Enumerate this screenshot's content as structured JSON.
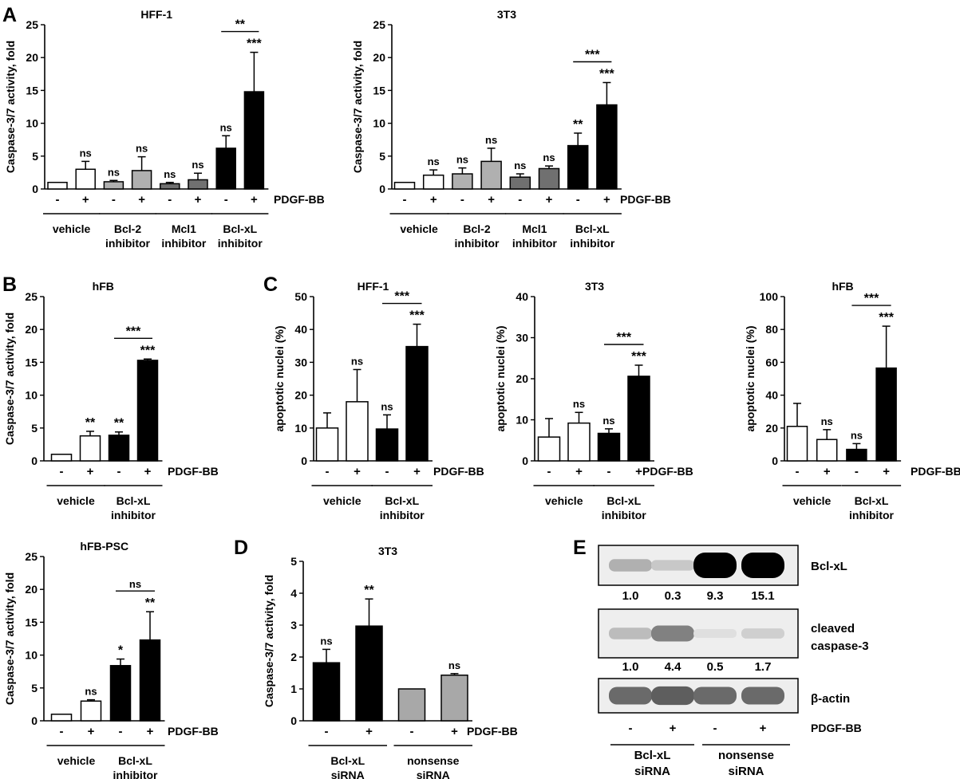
{
  "panel_letters": {
    "A": "A",
    "B": "B",
    "C": "C",
    "D": "D",
    "E": "E"
  },
  "chart_data": [
    {
      "id": "A1",
      "type": "bar",
      "title": "HFF-1",
      "ylabel": "Caspase-3/7 activity, fold",
      "ylim": [
        0,
        25
      ],
      "yticks": [
        "0",
        "5",
        "10",
        "15",
        "20",
        "25"
      ],
      "treatment_label": "PDGF-BB",
      "x_signs": [
        "-",
        "+",
        "-",
        "+",
        "-",
        "+",
        "-",
        "+"
      ],
      "groups": [
        {
          "label": [
            "vehicle"
          ],
          "bars": [
            0,
            1
          ]
        },
        {
          "label": [
            "Bcl-2",
            "inhibitor"
          ],
          "bars": [
            2,
            3
          ]
        },
        {
          "label": [
            "Mcl1",
            "inhibitor"
          ],
          "bars": [
            4,
            5
          ]
        },
        {
          "label": [
            "Bcl-xL",
            "inhibitor"
          ],
          "bars": [
            6,
            7
          ]
        }
      ],
      "values": [
        1.0,
        3.0,
        1.1,
        2.8,
        0.8,
        1.4,
        6.2,
        14.8
      ],
      "errors": [
        0,
        1.2,
        0.2,
        2.1,
        0.2,
        1.0,
        1.9,
        6.0
      ],
      "fills": [
        "#ffffff",
        "#ffffff",
        "#b0b0b0",
        "#b0b0b0",
        "#707070",
        "#707070",
        "#000000",
        "#000000"
      ],
      "bar_labels": [
        "",
        "ns",
        "ns",
        "ns",
        "ns",
        "ns",
        "ns",
        "***"
      ],
      "comparisons": [
        {
          "from": 6,
          "to": 7,
          "label": "**"
        }
      ]
    },
    {
      "id": "A2",
      "type": "bar",
      "title": "3T3",
      "ylabel": "Caspase-3/7 activity, fold",
      "ylim": [
        0,
        25
      ],
      "yticks": [
        "0",
        "5",
        "10",
        "15",
        "20",
        "25"
      ],
      "treatment_label": "PDGF-BB",
      "x_signs": [
        "-",
        "+",
        "-",
        "+",
        "-",
        "+",
        "-",
        "+"
      ],
      "groups": [
        {
          "label": [
            "vehicle"
          ],
          "bars": [
            0,
            1
          ]
        },
        {
          "label": [
            "Bcl-2",
            "inhibitor"
          ],
          "bars": [
            2,
            3
          ]
        },
        {
          "label": [
            "Mcl1",
            "inhibitor"
          ],
          "bars": [
            4,
            5
          ]
        },
        {
          "label": [
            "Bcl-xL",
            "inhibitor"
          ],
          "bars": [
            6,
            7
          ]
        }
      ],
      "values": [
        1.0,
        2.1,
        2.3,
        4.2,
        1.8,
        3.1,
        6.6,
        12.8
      ],
      "errors": [
        0,
        0.8,
        0.9,
        2.0,
        0.5,
        0.4,
        1.9,
        3.4
      ],
      "fills": [
        "#ffffff",
        "#ffffff",
        "#b0b0b0",
        "#b0b0b0",
        "#707070",
        "#707070",
        "#000000",
        "#000000"
      ],
      "bar_labels": [
        "",
        "ns",
        "ns",
        "ns",
        "ns",
        "ns",
        "**",
        "***"
      ],
      "comparisons": [
        {
          "from": 6,
          "to": 7,
          "label": "***"
        }
      ]
    },
    {
      "id": "B1",
      "type": "bar",
      "title": "hFB",
      "ylabel": "Caspase-3/7 activity, fold",
      "ylim": [
        0,
        25
      ],
      "yticks": [
        "0",
        "5",
        "10",
        "15",
        "20",
        "25"
      ],
      "treatment_label": "PDGF-BB",
      "x_signs": [
        "-",
        "+",
        "-",
        "+"
      ],
      "groups": [
        {
          "label": [
            "vehicle"
          ],
          "bars": [
            0,
            1
          ]
        },
        {
          "label": [
            "Bcl-xL",
            "inhibitor"
          ],
          "bars": [
            2,
            3
          ]
        }
      ],
      "values": [
        1.0,
        3.8,
        3.9,
        15.3
      ],
      "errors": [
        0,
        0.7,
        0.5,
        0.2
      ],
      "fills": [
        "#ffffff",
        "#ffffff",
        "#000000",
        "#000000"
      ],
      "bar_labels": [
        "",
        "**",
        "**",
        "***"
      ],
      "comparisons": [
        {
          "from": 2,
          "to": 3,
          "label": "***"
        }
      ]
    },
    {
      "id": "B2",
      "type": "bar",
      "title": "hFB-PSC",
      "ylabel": "Caspase-3/7 activity, fold",
      "ylim": [
        0,
        25
      ],
      "yticks": [
        "0",
        "5",
        "10",
        "15",
        "20",
        "25"
      ],
      "treatment_label": "PDGF-BB",
      "x_signs": [
        "-",
        "+",
        "-",
        "+"
      ],
      "groups": [
        {
          "label": [
            "vehicle"
          ],
          "bars": [
            0,
            1
          ]
        },
        {
          "label": [
            "Bcl-xL",
            "inhibitor"
          ],
          "bars": [
            2,
            3
          ]
        }
      ],
      "values": [
        1.0,
        3.0,
        8.4,
        12.3
      ],
      "errors": [
        0,
        0.2,
        1.0,
        4.3
      ],
      "fills": [
        "#ffffff",
        "#ffffff",
        "#000000",
        "#000000"
      ],
      "bar_labels": [
        "",
        "ns",
        "*",
        "**"
      ],
      "comparisons": [
        {
          "from": 2,
          "to": 3,
          "label": "ns"
        }
      ]
    },
    {
      "id": "C1",
      "type": "bar",
      "title": "HFF-1",
      "ylabel": "apoptotic nuclei (%)",
      "ylim": [
        0,
        50
      ],
      "yticks": [
        "0",
        "10",
        "20",
        "30",
        "40",
        "50"
      ],
      "treatment_label": "PDGF-BB",
      "x_signs": [
        "-",
        "+",
        "-",
        "+"
      ],
      "groups": [
        {
          "label": [
            "vehicle"
          ],
          "bars": [
            0,
            1
          ]
        },
        {
          "label": [
            "Bcl-xL",
            "inhibitor"
          ],
          "bars": [
            2,
            3
          ]
        }
      ],
      "values": [
        10.0,
        18.0,
        9.7,
        34.8
      ],
      "errors": [
        4.6,
        9.8,
        4.3,
        6.8
      ],
      "fills": [
        "#ffffff",
        "#ffffff",
        "#000000",
        "#000000"
      ],
      "bar_labels": [
        "",
        "ns",
        "ns",
        "***"
      ],
      "comparisons": [
        {
          "from": 2,
          "to": 3,
          "label": "***"
        }
      ]
    },
    {
      "id": "C2",
      "type": "bar",
      "title": "3T3",
      "ylabel": "apoptotic nuclei (%)",
      "ylim": [
        0,
        40
      ],
      "yticks": [
        "0",
        "10",
        "20",
        "30",
        "40"
      ],
      "treatment_label": "PDGF-BB",
      "x_signs": [
        "-",
        "+",
        "-",
        "+"
      ],
      "groups": [
        {
          "label": [
            "vehicle"
          ],
          "bars": [
            0,
            1
          ]
        },
        {
          "label": [
            "Bcl-xL",
            "inhibitor"
          ],
          "bars": [
            2,
            3
          ]
        }
      ],
      "values": [
        5.8,
        9.2,
        6.7,
        20.6
      ],
      "errors": [
        4.5,
        2.6,
        1.1,
        2.7
      ],
      "fills": [
        "#ffffff",
        "#ffffff",
        "#000000",
        "#000000"
      ],
      "bar_labels": [
        "",
        "ns",
        "ns",
        "***"
      ],
      "comparisons": [
        {
          "from": 2,
          "to": 3,
          "label": "***"
        }
      ]
    },
    {
      "id": "C3",
      "type": "bar",
      "title": "hFB",
      "ylabel": "apoptotic nuclei (%)",
      "ylim": [
        0,
        100
      ],
      "yticks": [
        "0",
        "20",
        "40",
        "60",
        "80",
        "100"
      ],
      "treatment_label": "PDGF-BB",
      "x_signs": [
        "-",
        "+",
        "-",
        "+"
      ],
      "groups": [
        {
          "label": [
            "vehicle"
          ],
          "bars": [
            0,
            1
          ]
        },
        {
          "label": [
            "Bcl-xL",
            "inhibitor"
          ],
          "bars": [
            2,
            3
          ]
        }
      ],
      "values": [
        21.0,
        13.0,
        7.0,
        56.5
      ],
      "errors": [
        14.0,
        6.0,
        3.5,
        25.5
      ],
      "fills": [
        "#ffffff",
        "#ffffff",
        "#000000",
        "#000000"
      ],
      "bar_labels": [
        "",
        "ns",
        "ns",
        "***"
      ],
      "comparisons": [
        {
          "from": 2,
          "to": 3,
          "label": "***"
        }
      ]
    },
    {
      "id": "D",
      "type": "bar",
      "title": "3T3",
      "ylabel": "Caspase-3/7 activity, fold",
      "ylim": [
        0,
        5
      ],
      "yticks": [
        "0",
        "1",
        "2",
        "3",
        "4",
        "5"
      ],
      "treatment_label": "PDGF-BB",
      "x_signs": [
        "-",
        "+",
        "-",
        "+"
      ],
      "groups": [
        {
          "label": [
            "Bcl-xL",
            "siRNA"
          ],
          "bars": [
            0,
            1
          ]
        },
        {
          "label": [
            "nonsense",
            "siRNA"
          ],
          "bars": [
            2,
            3
          ]
        }
      ],
      "values": [
        1.82,
        2.97,
        1.0,
        1.43
      ],
      "errors": [
        0.42,
        0.85,
        0,
        0.05
      ],
      "fills": [
        "#000000",
        "#000000",
        "#a8a8a8",
        "#a8a8a8"
      ],
      "bar_labels": [
        "ns",
        "**",
        "",
        "ns"
      ],
      "comparisons": []
    }
  ],
  "western_blot": {
    "treatment_label": "PDGF-BB",
    "lane_signs": [
      "-",
      "+",
      "-",
      "+"
    ],
    "lane_groups": [
      {
        "label": [
          "Bcl-xL",
          "siRNA"
        ]
      },
      {
        "label": [
          "nonsense",
          "siRNA"
        ]
      }
    ],
    "bands": [
      {
        "name": "Bcl-xL",
        "intensity": [
          0.25,
          0.15,
          1.0,
          1.0
        ],
        "quant": [
          "1.0",
          "0.3",
          "9.3",
          "15.1"
        ]
      },
      {
        "name": [
          "cleaved",
          "caspase-3"
        ],
        "intensity": [
          0.2,
          0.45,
          0.05,
          0.12
        ],
        "quant": [
          "1.0",
          "4.4",
          "0.5",
          "1.7"
        ]
      },
      {
        "name": "β-actin",
        "intensity": [
          0.55,
          0.6,
          0.55,
          0.55
        ],
        "quant": []
      }
    ]
  }
}
